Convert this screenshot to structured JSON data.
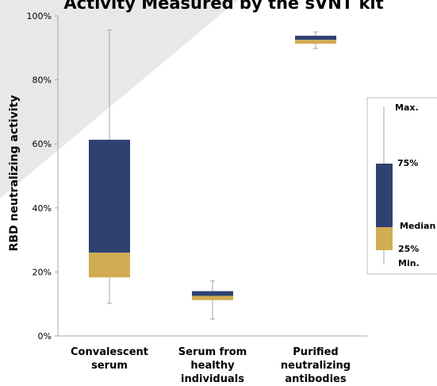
{
  "chart_data": {
    "type": "box",
    "title": "Activity Measured by the sVNT kit",
    "ylabel": "RBD neutralizing activity",
    "xlabel": "",
    "ylim": [
      0,
      100
    ],
    "yticks": [
      "0%",
      "20%",
      "40%",
      "60%",
      "80%",
      "100%"
    ],
    "categories": [
      [
        "Convalescent",
        "serum"
      ],
      [
        "Serum from",
        "healthy",
        "individuals"
      ],
      [
        "Purified",
        "neutralizing",
        "antibodies"
      ]
    ],
    "boxes": [
      {
        "min": 10.2,
        "q1": 18.3,
        "median": 26.0,
        "q3": 61.3,
        "max": 95.6
      },
      {
        "min": 5.3,
        "q1": 11.2,
        "median": 12.5,
        "q3": 14.0,
        "max": 17.2
      },
      {
        "min": 89.8,
        "q1": 91.3,
        "median": 92.5,
        "q3": 93.8,
        "max": 95.0
      }
    ],
    "colors": {
      "upper": "#2e4272",
      "lower": "#d1ac52",
      "whisker": "#a6a6a6",
      "axis": "#a6a6a6"
    },
    "legend": {
      "position": "right",
      "labels": {
        "max": "Max.",
        "q3": "75%",
        "median": "Median",
        "q1": "25%",
        "min": "Min."
      }
    }
  }
}
